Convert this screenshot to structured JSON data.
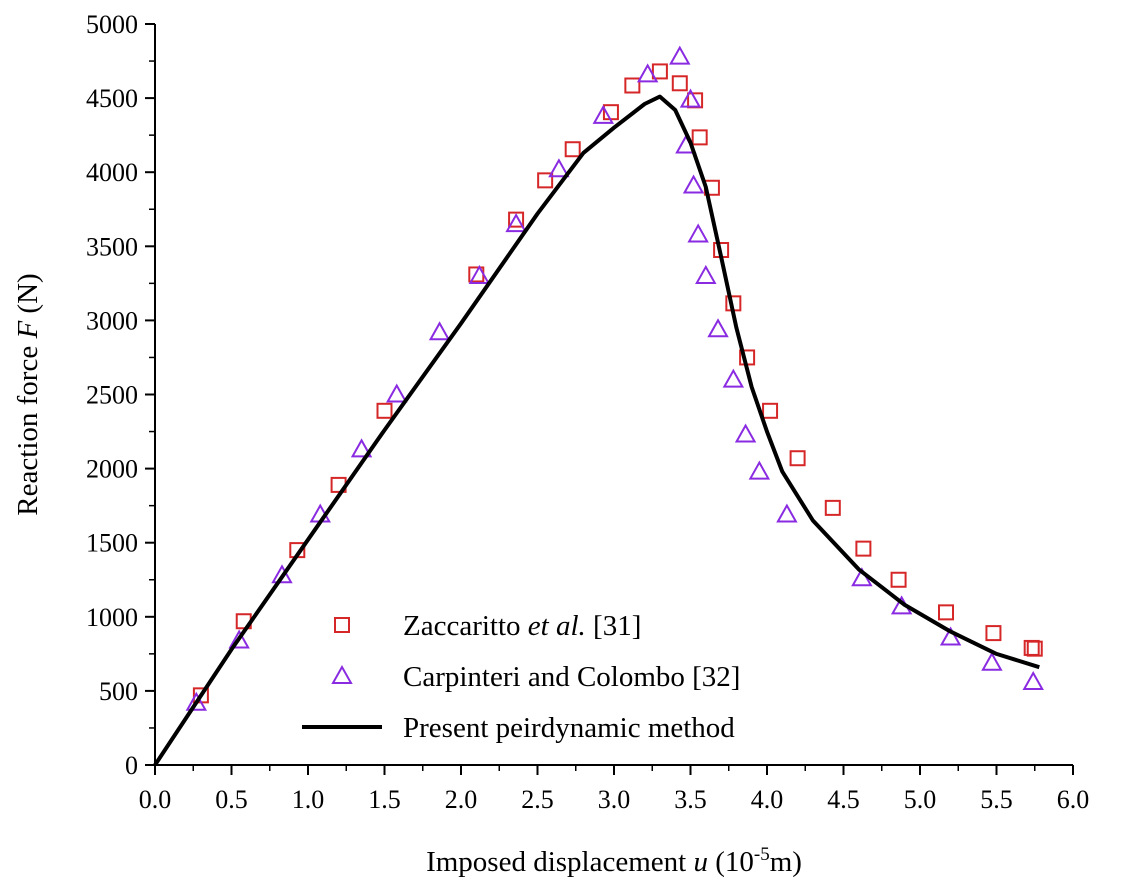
{
  "chart_data": {
    "type": "scatter",
    "title": "",
    "xlabel": {
      "main": "Imposed displacement ",
      "var": "u",
      "pre": " (10",
      "sup": "-5",
      "post": "m)"
    },
    "ylabel": {
      "main": "Reaction force ",
      "var": "F",
      "post": " (N)"
    },
    "xlim": [
      0,
      6
    ],
    "ylim": [
      0,
      5000
    ],
    "x_ticks": [
      0.0,
      0.5,
      1.0,
      1.5,
      2.0,
      2.5,
      3.0,
      3.5,
      4.0,
      4.5,
      5.0,
      5.5,
      6.0
    ],
    "x_tick_labels": [
      "0.0",
      "0.5",
      "1.0",
      "1.5",
      "2.0",
      "2.5",
      "3.0",
      "3.5",
      "4.0",
      "4.5",
      "5.0",
      "5.5",
      "6.0"
    ],
    "y_ticks": [
      0,
      500,
      1000,
      1500,
      2000,
      2500,
      3000,
      3500,
      4000,
      4500,
      5000
    ],
    "y_tick_labels": [
      "0",
      "500",
      "1000",
      "1500",
      "2000",
      "2500",
      "3000",
      "3500",
      "4000",
      "4500",
      "5000"
    ],
    "legend_position": "bottom-left",
    "series": [
      {
        "name": "Zaccaritto et al. [31]",
        "legend": {
          "pre": "Zaccaritto ",
          "ital": "et al.",
          "post": " [31]"
        },
        "marker": "square",
        "color": "#d62728",
        "x": [
          0.3,
          0.58,
          0.93,
          1.2,
          1.5,
          2.1,
          2.36,
          2.55,
          2.73,
          2.98,
          3.12,
          3.3,
          3.43,
          3.53,
          3.56,
          3.64,
          3.7,
          3.78,
          3.87,
          4.02,
          4.2,
          4.43,
          4.63,
          4.86,
          5.17,
          5.48,
          5.75,
          5.73
        ],
        "y": [
          470,
          970,
          1450,
          1890,
          2390,
          3310,
          3680,
          3945,
          4155,
          4405,
          4585,
          4680,
          4600,
          4485,
          4235,
          3895,
          3475,
          3115,
          2750,
          2390,
          2070,
          1735,
          1460,
          1250,
          1030,
          890,
          785,
          790
        ]
      },
      {
        "name": "Carpinteri and Colombo [32]",
        "legend": {
          "pre": "Carpinteri and Colombo [32]",
          "ital": "",
          "post": ""
        },
        "marker": "triangle",
        "color": "#8a2be2",
        "x": [
          0.27,
          0.55,
          0.83,
          1.08,
          1.35,
          1.58,
          1.86,
          2.12,
          2.36,
          2.64,
          2.93,
          3.22,
          3.43,
          3.47,
          3.5,
          3.52,
          3.55,
          3.6,
          3.68,
          3.78,
          3.86,
          3.95,
          4.13,
          4.62,
          4.88,
          5.2,
          5.47,
          5.74
        ],
        "y": [
          420,
          840,
          1280,
          1690,
          2130,
          2500,
          2920,
          3300,
          3650,
          4020,
          4380,
          4660,
          4780,
          4180,
          4490,
          3910,
          3580,
          3300,
          2940,
          2600,
          2230,
          1980,
          1690,
          1260,
          1070,
          860,
          690,
          560
        ]
      },
      {
        "name": "Present peirdynamic method",
        "legend": {
          "pre": "Present peirdynamic method",
          "ital": "",
          "post": ""
        },
        "marker": "line",
        "color": "#000000",
        "x": [
          0.0,
          0.5,
          1.0,
          1.5,
          2.0,
          2.5,
          2.8,
          3.0,
          3.2,
          3.3,
          3.4,
          3.5,
          3.6,
          3.7,
          3.8,
          3.9,
          4.0,
          4.1,
          4.3,
          4.6,
          4.9,
          5.2,
          5.5,
          5.78
        ],
        "y": [
          0,
          780,
          1520,
          2260,
          2980,
          3720,
          4130,
          4300,
          4460,
          4510,
          4420,
          4200,
          3900,
          3430,
          2950,
          2550,
          2250,
          1980,
          1650,
          1320,
          1080,
          900,
          750,
          660
        ]
      }
    ]
  }
}
